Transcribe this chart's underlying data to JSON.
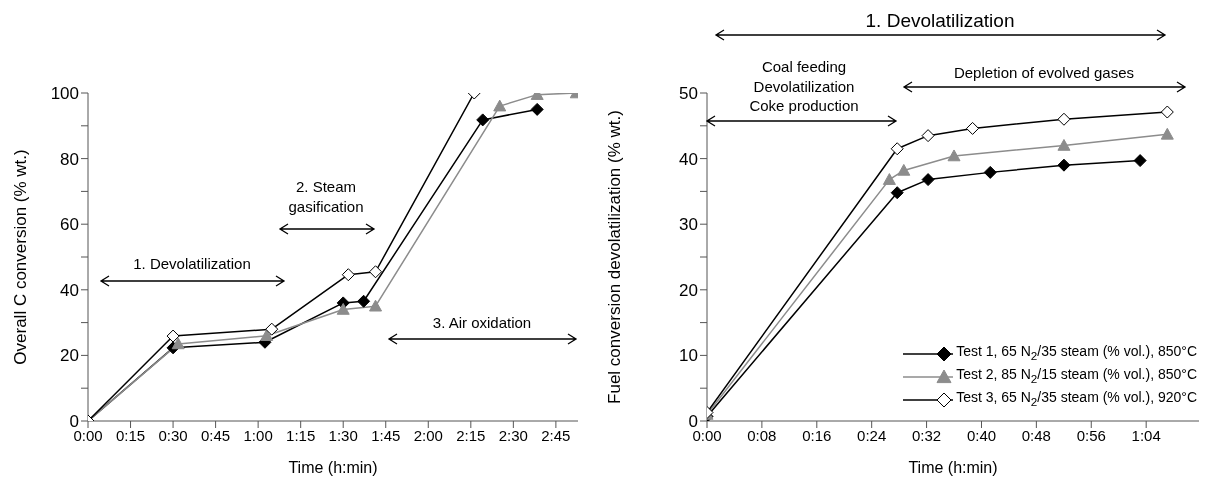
{
  "chart_data": [
    {
      "type": "line",
      "xlabel": "Time (h:min)",
      "ylabel": "Overall C conversion (% wt.)",
      "xlim": [
        0,
        2.88
      ],
      "xticks": [
        {
          "value": 0,
          "label": "0:00"
        },
        {
          "value": 0.25,
          "label": "0:15"
        },
        {
          "value": 0.5,
          "label": "0:30"
        },
        {
          "value": 0.75,
          "label": "0:45"
        },
        {
          "value": 1,
          "label": "1:00"
        },
        {
          "value": 1.25,
          "label": "1:15"
        },
        {
          "value": 1.5,
          "label": "1:30"
        },
        {
          "value": 1.75,
          "label": "1:45"
        },
        {
          "value": 2,
          "label": "2:00"
        },
        {
          "value": 2.25,
          "label": "2:15"
        },
        {
          "value": 2.5,
          "label": "2:30"
        },
        {
          "value": 2.75,
          "label": "2:45"
        }
      ],
      "ylim": [
        0,
        100
      ],
      "yticks": [
        0,
        {
          "value": 10,
          "label": null
        },
        20,
        {
          "value": 30,
          "label": null
        },
        40,
        {
          "value": 50,
          "label": null
        },
        60,
        {
          "value": 70,
          "label": null
        },
        80,
        {
          "value": 90,
          "label": null
        },
        100
      ],
      "line_style": "solid",
      "annotations": [
        "1. Devolatilization",
        "2. Steam\ngasification",
        "3. Air oxidation"
      ],
      "series": [
        {
          "color": "#000000",
          "marker": "diamond",
          "x": [
            0,
            0.5,
            1.04,
            1.5,
            1.62,
            2.32,
            2.64
          ],
          "values": [
            0,
            22.3,
            24,
            36,
            36.5,
            91.8,
            95
          ]
        },
        {
          "color": "#8c8c8c",
          "marker": "triangle",
          "x": [
            0,
            0.53,
            1.05,
            1.5,
            1.69,
            2.42,
            2.64,
            2.87
          ],
          "values": [
            0,
            23.5,
            26,
            34,
            35,
            96,
            99.5,
            100
          ]
        },
        {
          "color": "#000000",
          "marker": "diamond",
          "x": [
            0,
            0.5,
            1.08,
            1.53,
            1.69,
            2.27
          ],
          "values": [
            0,
            25.9,
            28,
            44.6,
            45.5,
            100
          ]
        }
      ]
    },
    {
      "type": "line",
      "xlabel": "Time (h:min)",
      "ylabel": "Fuel conversion devolatilization (% wt.)",
      "xlim": [
        0,
        1.195
      ],
      "xticks": [
        {
          "value": 0,
          "label": "0:00"
        },
        {
          "value": 0.1333,
          "label": "0:08"
        },
        {
          "value": 0.2667,
          "label": "0:16"
        },
        {
          "value": 0.4,
          "label": "0:24"
        },
        {
          "value": 0.5333,
          "label": "0:32"
        },
        {
          "value": 0.6667,
          "label": "0:40"
        },
        {
          "value": 0.8,
          "label": "0:48"
        },
        {
          "value": 0.9333,
          "label": "0:56"
        },
        {
          "value": 1.0667,
          "label": "1:04"
        }
      ],
      "ylim": [
        0,
        50
      ],
      "yticks": [
        0,
        {
          "value": 5,
          "label": null
        },
        10,
        {
          "value": 15,
          "label": null
        },
        20,
        {
          "value": 25,
          "label": null
        },
        30,
        {
          "value": 35,
          "label": null
        },
        40,
        {
          "value": 45,
          "label": null
        },
        50
      ],
      "line_style": "solid",
      "legend": "bottom right",
      "annotations": [
        "1. Devolatilization",
        "Coal feeding\nDevolatilization\nCoke production",
        "Depletion of evolved gases"
      ],
      "series": [
        {
          "name": "Test 1, 65 N$_{2}$/35 steam (% vol.), 850°C",
          "color": "#000000",
          "marker": "diamond",
          "x": [
            0,
            0.462,
            0.537,
            0.688,
            0.867,
            1.052
          ],
          "values": [
            0.7,
            34.8,
            36.8,
            37.9,
            39,
            39.7
          ]
        },
        {
          "name": "Test 2, 85 N$_{2}$/15 steam (% vol.), 850°C",
          "color": "#8c8c8c",
          "marker": "triangle",
          "x": [
            0,
            0.443,
            0.478,
            0.6,
            0.867,
            1.118
          ],
          "values": [
            1,
            36.8,
            38.2,
            40.4,
            42,
            43.7
          ]
        },
        {
          "name": "Test 3, 65 N$_{2}$/35 steam (% vol.), 920°C",
          "color": "#000000",
          "marker": "diamond",
          "x": [
            0,
            0.462,
            0.537,
            0.645,
            0.867,
            1.118
          ],
          "values": [
            1.3,
            41.5,
            43.5,
            44.6,
            46,
            47.1
          ]
        }
      ]
    }
  ]
}
